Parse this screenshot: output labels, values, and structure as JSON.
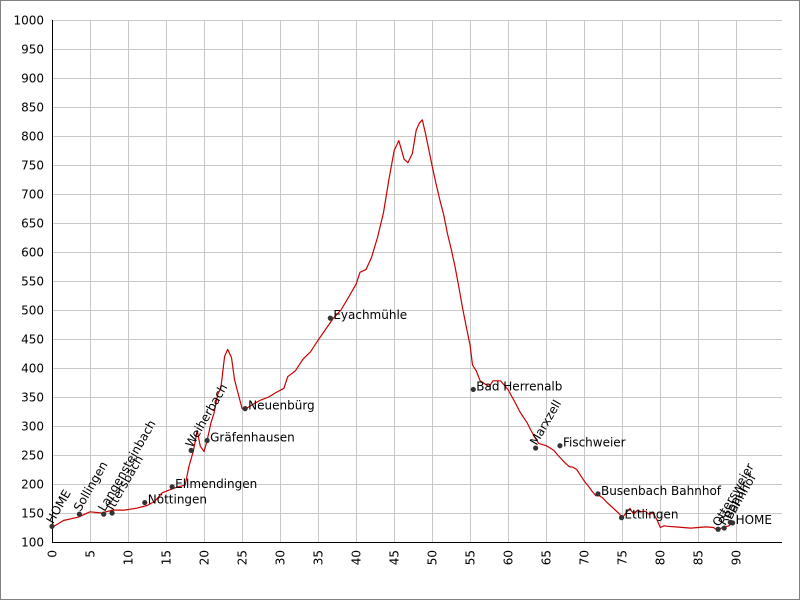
{
  "chart_data": {
    "type": "line",
    "title": "",
    "xlabel": "",
    "ylabel": "",
    "xlim": [
      0,
      96
    ],
    "ylim": [
      100,
      1000
    ],
    "grid": true,
    "x_ticks": [
      0,
      5,
      10,
      15,
      20,
      25,
      30,
      35,
      40,
      45,
      50,
      55,
      60,
      65,
      70,
      75,
      80,
      85,
      90
    ],
    "y_ticks": [
      100,
      150,
      200,
      250,
      300,
      350,
      400,
      450,
      500,
      550,
      600,
      650,
      700,
      750,
      800,
      850,
      900,
      950,
      1000
    ],
    "colors": {
      "line": "#cc0000",
      "marker": "#333333",
      "grid": "#c8c8c8",
      "axis": "#000000",
      "frame": "#808080"
    },
    "series": [
      {
        "values": [
          [
            0.0,
            125
          ],
          [
            1.5,
            137
          ],
          [
            3.5,
            143
          ],
          [
            5.0,
            152
          ],
          [
            6.5,
            150
          ],
          [
            8.0,
            155
          ],
          [
            9.5,
            155
          ],
          [
            11.0,
            158
          ],
          [
            12.5,
            163
          ],
          [
            13.5,
            170
          ],
          [
            14.5,
            185
          ],
          [
            15.5,
            190
          ],
          [
            16.5,
            195
          ],
          [
            17.5,
            198
          ],
          [
            18.0,
            230
          ],
          [
            18.6,
            257
          ],
          [
            19.1,
            292
          ],
          [
            19.5,
            265
          ],
          [
            20.0,
            256
          ],
          [
            20.4,
            275
          ],
          [
            20.9,
            305
          ],
          [
            21.3,
            322
          ],
          [
            21.8,
            355
          ],
          [
            22.2,
            365
          ],
          [
            22.7,
            420
          ],
          [
            23.1,
            432
          ],
          [
            23.6,
            418
          ],
          [
            24.0,
            380
          ],
          [
            24.5,
            355
          ],
          [
            25.0,
            330
          ],
          [
            25.5,
            330
          ],
          [
            26.5,
            338
          ],
          [
            27.5,
            345
          ],
          [
            28.5,
            350
          ],
          [
            29.5,
            358
          ],
          [
            30.5,
            365
          ],
          [
            31.0,
            385
          ],
          [
            32.0,
            395
          ],
          [
            33.0,
            415
          ],
          [
            34.0,
            428
          ],
          [
            35.0,
            448
          ],
          [
            36.0,
            467
          ],
          [
            37.0,
            486
          ],
          [
            38.0,
            500
          ],
          [
            39.0,
            522
          ],
          [
            40.0,
            545
          ],
          [
            40.5,
            565
          ],
          [
            41.3,
            570
          ],
          [
            42.0,
            590
          ],
          [
            42.8,
            625
          ],
          [
            43.6,
            668
          ],
          [
            44.3,
            725
          ],
          [
            45.0,
            775
          ],
          [
            45.6,
            792
          ],
          [
            46.3,
            760
          ],
          [
            46.8,
            754
          ],
          [
            47.4,
            770
          ],
          [
            47.9,
            810
          ],
          [
            48.3,
            822
          ],
          [
            48.7,
            828
          ],
          [
            49.1,
            805
          ],
          [
            49.5,
            780
          ],
          [
            50.0,
            748
          ],
          [
            50.5,
            718
          ],
          [
            51.0,
            690
          ],
          [
            51.5,
            665
          ],
          [
            52.0,
            632
          ],
          [
            52.5,
            605
          ],
          [
            53.0,
            575
          ],
          [
            53.5,
            540
          ],
          [
            54.0,
            503
          ],
          [
            54.5,
            470
          ],
          [
            55.0,
            438
          ],
          [
            55.3,
            405
          ],
          [
            55.8,
            395
          ],
          [
            56.3,
            378
          ],
          [
            57.0,
            372
          ],
          [
            57.5,
            368
          ],
          [
            58.0,
            378
          ],
          [
            59.0,
            378
          ],
          [
            59.5,
            370
          ],
          [
            60.0,
            362
          ],
          [
            60.5,
            350
          ],
          [
            61.0,
            338
          ],
          [
            61.5,
            325
          ],
          [
            62.0,
            315
          ],
          [
            62.5,
            305
          ],
          [
            63.0,
            292
          ],
          [
            63.5,
            280
          ],
          [
            64.0,
            270
          ],
          [
            64.5,
            268
          ],
          [
            65.0,
            266
          ],
          [
            65.5,
            262
          ],
          [
            66.0,
            258
          ],
          [
            66.5,
            250
          ],
          [
            67.0,
            243
          ],
          [
            67.5,
            236
          ],
          [
            68.0,
            230
          ],
          [
            68.5,
            229
          ],
          [
            69.0,
            225
          ],
          [
            69.5,
            215
          ],
          [
            70.0,
            205
          ],
          [
            70.5,
            197
          ],
          [
            71.0,
            188
          ],
          [
            71.5,
            180
          ],
          [
            72.0,
            180
          ],
          [
            72.5,
            175
          ],
          [
            73.0,
            168
          ],
          [
            73.5,
            162
          ],
          [
            74.0,
            156
          ],
          [
            74.5,
            150
          ],
          [
            75.0,
            142
          ],
          [
            75.5,
            150
          ],
          [
            76.0,
            158
          ],
          [
            76.5,
            148
          ],
          [
            77.0,
            155
          ],
          [
            77.5,
            152
          ],
          [
            78.0,
            153
          ],
          [
            78.5,
            148
          ],
          [
            79.0,
            150
          ],
          [
            79.5,
            140
          ],
          [
            80.0,
            125
          ],
          [
            80.5,
            128
          ],
          [
            81.0,
            127
          ],
          [
            82.0,
            126
          ],
          [
            83.0,
            125
          ],
          [
            84.0,
            124
          ],
          [
            85.0,
            125
          ],
          [
            86.0,
            126
          ],
          [
            87.0,
            125
          ],
          [
            87.5,
            120
          ],
          [
            88.0,
            124
          ],
          [
            88.5,
            126
          ],
          [
            89.0,
            128
          ],
          [
            89.5,
            133
          ]
        ]
      }
    ],
    "annotations": [
      {
        "label": "HOME",
        "x": 0.0,
        "y": 127,
        "rotate": true
      },
      {
        "label": "Sollingen",
        "x": 3.6,
        "y": 148,
        "rotate": true
      },
      {
        "label": "Langensteinbach",
        "x": 6.8,
        "y": 148,
        "rotate": true
      },
      {
        "label": "Ittersbach",
        "x": 7.9,
        "y": 150,
        "rotate": true
      },
      {
        "label": "Nöttingen",
        "x": 12.2,
        "y": 168,
        "rotate": false
      },
      {
        "label": "Ellmendingen",
        "x": 15.8,
        "y": 195,
        "rotate": false
      },
      {
        "label": "Weiherbach",
        "x": 18.3,
        "y": 258,
        "rotate": true
      },
      {
        "label": "Gräfenhausen",
        "x": 20.4,
        "y": 275,
        "rotate": false
      },
      {
        "label": "Neuenbürg",
        "x": 25.4,
        "y": 330,
        "rotate": false
      },
      {
        "label": "Eyachmühle",
        "x": 36.6,
        "y": 486,
        "rotate": false
      },
      {
        "label": "Bad Herrenalb",
        "x": 55.4,
        "y": 363,
        "rotate": false
      },
      {
        "label": "Marxzell",
        "x": 63.6,
        "y": 262,
        "rotate": true
      },
      {
        "label": "Fischweier",
        "x": 66.8,
        "y": 266,
        "rotate": false
      },
      {
        "label": "Busenbach Bahnhof",
        "x": 71.8,
        "y": 183,
        "rotate": false
      },
      {
        "label": "Ettlingen",
        "x": 74.9,
        "y": 142,
        "rotate": false
      },
      {
        "label": "Ottersweier",
        "x": 87.6,
        "y": 122,
        "rotate": true
      },
      {
        "label": "Rüppurr",
        "x": 88.4,
        "y": 124,
        "rotate": true
      },
      {
        "label": "Bahnhof",
        "x": 89.2,
        "y": 134,
        "rotate": true
      },
      {
        "label": "HOME",
        "x": 89.5,
        "y": 133,
        "rotate": false
      }
    ]
  }
}
